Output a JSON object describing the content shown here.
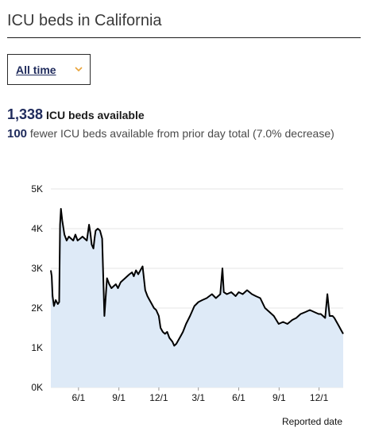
{
  "page": {
    "title": "ICU beds in California",
    "range_select": {
      "selected": "All time"
    },
    "headline": {
      "value": "1,338",
      "label": "ICU beds available"
    },
    "change": {
      "value": "100",
      "text": "fewer ICU beds available from prior day total (7.0% decrease)"
    }
  },
  "colors": {
    "line": "#000000",
    "area": "#deeaf7",
    "accent": "#1f2b5c",
    "chevron": "#e8a33a"
  },
  "chart_data": {
    "type": "area",
    "title": "",
    "xlabel": "Reported date",
    "ylabel": "",
    "ylim": [
      0,
      5000
    ],
    "yticks": [
      {
        "value": 0,
        "label": "0K"
      },
      {
        "value": 1000,
        "label": "1K"
      },
      {
        "value": 2000,
        "label": "2K"
      },
      {
        "value": 3000,
        "label": "3K"
      },
      {
        "value": 4000,
        "label": "4K"
      },
      {
        "value": 5000,
        "label": "5K"
      }
    ],
    "xlim": [
      "2020-03-30",
      "2022-01-25"
    ],
    "xticks": [
      {
        "date": "2020-06-01",
        "label": "6/1"
      },
      {
        "date": "2020-09-01",
        "label": "9/1"
      },
      {
        "date": "2020-12-01",
        "label": "12/1"
      },
      {
        "date": "2021-03-01",
        "label": "3/1"
      },
      {
        "date": "2021-06-01",
        "label": "6/1"
      },
      {
        "date": "2021-09-01",
        "label": "9/1"
      },
      {
        "date": "2021-12-01",
        "label": "12/1"
      }
    ],
    "grid": true,
    "series": [
      {
        "x": [
          "2020-03-30",
          "2020-04-01",
          "2020-04-03",
          "2020-04-06",
          "2020-04-10",
          "2020-04-15",
          "2020-04-18",
          "2020-04-20",
          "2020-04-22",
          "2020-04-25",
          "2020-04-30",
          "2020-05-05",
          "2020-05-10",
          "2020-05-15",
          "2020-05-20",
          "2020-05-25",
          "2020-05-30",
          "2020-06-05",
          "2020-06-10",
          "2020-06-15",
          "2020-06-20",
          "2020-06-25",
          "2020-06-28",
          "2020-07-01",
          "2020-07-05",
          "2020-07-08",
          "2020-07-10",
          "2020-07-15",
          "2020-07-20",
          "2020-07-25",
          "2020-07-30",
          "2020-08-05",
          "2020-08-10",
          "2020-08-15",
          "2020-08-20",
          "2020-08-25",
          "2020-08-30",
          "2020-09-05",
          "2020-09-10",
          "2020-09-15",
          "2020-09-20",
          "2020-09-25",
          "2020-10-01",
          "2020-10-05",
          "2020-10-10",
          "2020-10-15",
          "2020-10-20",
          "2020-10-25",
          "2020-10-31",
          "2020-11-05",
          "2020-11-10",
          "2020-11-15",
          "2020-11-20",
          "2020-11-25",
          "2020-12-01",
          "2020-12-05",
          "2020-12-10",
          "2020-12-15",
          "2020-12-20",
          "2020-12-25",
          "2021-01-01",
          "2021-01-05",
          "2021-01-10",
          "2021-01-15",
          "2021-01-20",
          "2021-01-25",
          "2021-02-01",
          "2021-02-10",
          "2021-02-20",
          "2021-03-01",
          "2021-03-10",
          "2021-03-20",
          "2021-04-01",
          "2021-04-10",
          "2021-04-20",
          "2021-04-25",
          "2021-04-28",
          "2021-05-05",
          "2021-05-15",
          "2021-05-25",
          "2021-06-01",
          "2021-06-10",
          "2021-06-20",
          "2021-07-01",
          "2021-07-10",
          "2021-07-20",
          "2021-07-31",
          "2021-08-10",
          "2021-08-20",
          "2021-08-31",
          "2021-09-10",
          "2021-09-20",
          "2021-10-01",
          "2021-10-10",
          "2021-10-20",
          "2021-10-31",
          "2021-11-10",
          "2021-11-20",
          "2021-11-30",
          "2021-12-05",
          "2021-12-10",
          "2021-12-15",
          "2021-12-20",
          "2021-12-25",
          "2022-01-01",
          "2022-01-05",
          "2022-01-10",
          "2022-01-15",
          "2022-01-20",
          "2022-01-25"
        ],
        "values": [
          2950,
          2800,
          2300,
          2050,
          2200,
          2100,
          2150,
          4100,
          4500,
          4200,
          3850,
          3700,
          3800,
          3750,
          3700,
          3850,
          3700,
          3750,
          3800,
          3750,
          3700,
          4100,
          3900,
          3600,
          3500,
          3800,
          3950,
          4000,
          3950,
          3750,
          1800,
          2750,
          2600,
          2500,
          2550,
          2600,
          2500,
          2650,
          2700,
          2750,
          2800,
          2850,
          2900,
          2800,
          2950,
          2850,
          2950,
          3050,
          2450,
          2300,
          2200,
          2100,
          2000,
          1950,
          1800,
          1500,
          1400,
          1350,
          1400,
          1250,
          1150,
          1050,
          1100,
          1200,
          1300,
          1400,
          1600,
          1800,
          2050,
          2150,
          2200,
          2250,
          2350,
          2250,
          2350,
          3000,
          2400,
          2350,
          2400,
          2300,
          2400,
          2350,
          2450,
          2350,
          2300,
          2250,
          2000,
          1900,
          1800,
          1600,
          1650,
          1600,
          1700,
          1750,
          1850,
          1900,
          1950,
          1900,
          1850,
          1850,
          1800,
          1750,
          2350,
          1800,
          1800,
          1750,
          1650,
          1550,
          1450,
          1350
        ]
      }
    ]
  }
}
